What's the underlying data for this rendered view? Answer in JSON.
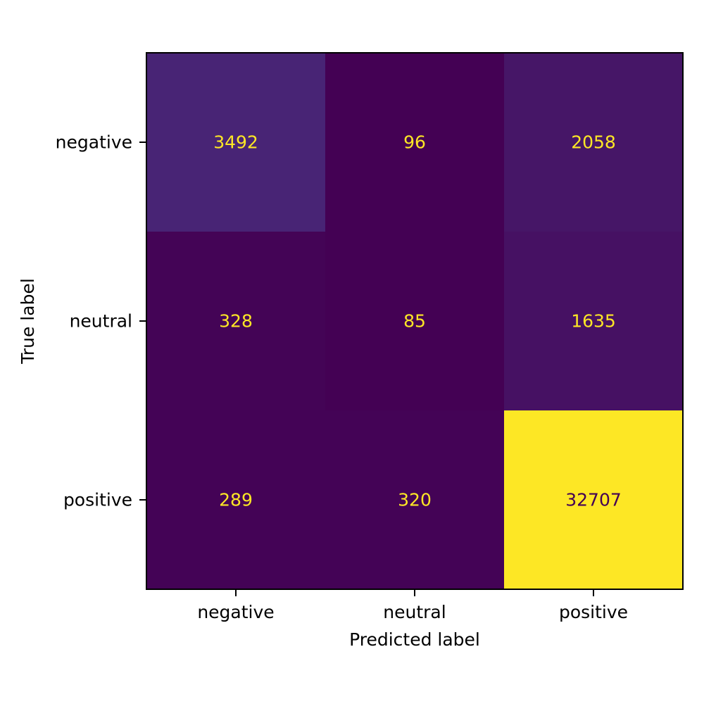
{
  "chart_data": {
    "type": "heatmap",
    "title": "",
    "xlabel": "Predicted label",
    "ylabel": "True label",
    "x_categories": [
      "negative",
      "neutral",
      "positive"
    ],
    "y_categories": [
      "negative",
      "neutral",
      "positive"
    ],
    "values": [
      [
        3492,
        96,
        2058
      ],
      [
        328,
        85,
        1635
      ],
      [
        289,
        320,
        32707
      ]
    ],
    "colormap": "viridis",
    "color_range": [
      85,
      32707
    ],
    "grid": false,
    "legend": "none",
    "colors": {
      "low": "#440154",
      "high": "#fde725",
      "text_on_dark": "#fde725",
      "text_on_light": "#440154"
    }
  }
}
